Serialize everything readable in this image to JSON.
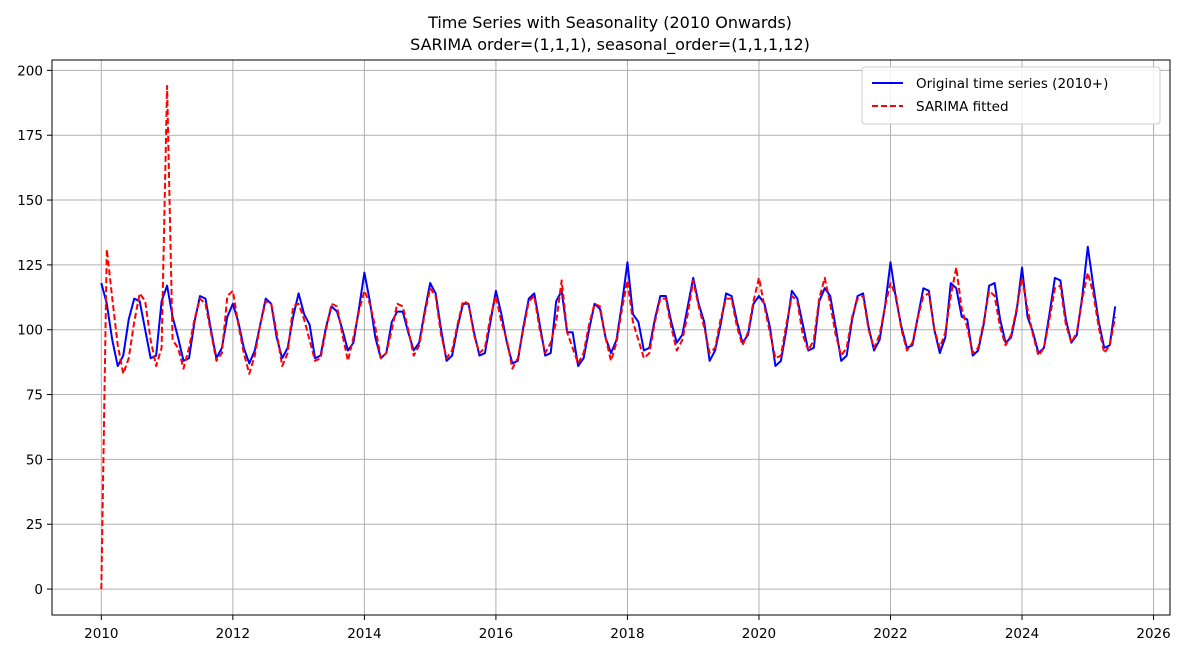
{
  "chart_data": {
    "type": "line",
    "title": "Time Series with Seasonality (2010 Onwards)",
    "subtitle": "SARIMA order=(1,1,1), seasonal_order=(1,1,1,12)",
    "xlabel": "",
    "ylabel": "",
    "xlim": [
      2009.25,
      2026.25
    ],
    "ylim": [
      -10,
      204
    ],
    "xticks": [
      2010,
      2012,
      2014,
      2016,
      2018,
      2020,
      2022,
      2024,
      2026
    ],
    "yticks": [
      0,
      25,
      50,
      75,
      100,
      125,
      150,
      175,
      200
    ],
    "grid": true,
    "legend_position": "top-right",
    "x_start": 2010.0,
    "x_step_months": 1,
    "series": [
      {
        "name": "Original time series (2010+)",
        "color": "#0000ff",
        "style": "solid",
        "values": [
          118,
          110,
          96,
          86,
          90,
          104,
          112,
          111,
          100,
          89,
          90,
          111,
          117,
          105,
          97,
          88,
          89,
          103,
          113,
          112,
          100,
          89,
          93,
          105,
          110,
          103,
          93,
          87,
          92,
          102,
          112,
          110,
          97,
          89,
          93,
          105,
          114,
          106,
          102,
          89,
          90,
          101,
          109,
          107,
          100,
          92,
          95,
          108,
          122,
          111,
          97,
          89,
          91,
          103,
          107,
          107,
          99,
          92,
          95,
          107,
          118,
          114,
          100,
          88,
          90,
          101,
          110,
          110,
          99,
          90,
          91,
          103,
          115,
          106,
          95,
          87,
          88,
          101,
          112,
          114,
          102,
          90,
          91,
          111,
          115,
          99,
          99,
          86,
          89,
          100,
          110,
          108,
          97,
          91,
          96,
          110,
          126,
          106,
          103,
          92,
          93,
          104,
          113,
          113,
          103,
          95,
          98,
          109,
          120,
          110,
          103,
          88,
          92,
          102,
          114,
          113,
          103,
          95,
          98,
          110,
          113,
          110,
          101,
          86,
          88,
          100,
          115,
          112,
          102,
          92,
          93,
          111,
          116,
          113,
          101,
          88,
          90,
          104,
          113,
          114,
          101,
          92,
          96,
          109,
          126,
          112,
          101,
          93,
          94,
          105,
          116,
          115,
          100,
          91,
          97,
          118,
          116,
          105,
          104,
          90,
          92,
          102,
          117,
          118,
          104,
          95,
          97,
          107,
          124,
          105,
          99,
          91,
          93,
          106,
          120,
          119,
          104,
          95,
          98,
          113,
          132,
          117,
          103,
          93,
          94,
          109
        ]
      },
      {
        "name": "SARIMA fitted",
        "color": "#ff0000",
        "style": "dashed",
        "values": [
          0,
          131,
          112,
          94,
          83,
          89,
          103,
          114,
          111,
          96,
          86,
          93,
          194,
          96,
          93,
          85,
          93,
          104,
          112,
          110,
          99,
          88,
          91,
          113,
          115,
          102,
          91,
          83,
          90,
          102,
          111,
          110,
          99,
          86,
          91,
          109,
          110,
          104,
          96,
          88,
          89,
          100,
          110,
          109,
          98,
          88,
          97,
          107,
          115,
          110,
          101,
          89,
          91,
          100,
          110,
          109,
          100,
          90,
          94,
          106,
          116,
          113,
          98,
          89,
          92,
          102,
          111,
          110,
          98,
          91,
          93,
          105,
          113,
          103,
          96,
          85,
          89,
          100,
          111,
          113,
          100,
          91,
          95,
          103,
          119,
          99,
          93,
          87,
          91,
          102,
          110,
          109,
          97,
          88,
          95,
          108,
          119,
          103,
          96,
          89,
          91,
          103,
          112,
          112,
          101,
          92,
          96,
          106,
          119,
          109,
          101,
          91,
          93,
          104,
          112,
          112,
          101,
          94,
          99,
          111,
          120,
          109,
          99,
          89,
          90,
          102,
          113,
          111,
          98,
          92,
          96,
          112,
          120,
          110,
          98,
          90,
          93,
          105,
          112,
          113,
          100,
          93,
          98,
          109,
          118,
          113,
          100,
          92,
          95,
          105,
          113,
          114,
          100,
          93,
          99,
          113,
          124,
          108,
          101,
          91,
          93,
          103,
          115,
          113,
          101,
          94,
          98,
          108,
          120,
          108,
          98,
          90,
          93,
          104,
          116,
          117,
          102,
          95,
          99,
          112,
          122,
          114,
          101,
          91,
          94,
          105
        ]
      }
    ]
  }
}
